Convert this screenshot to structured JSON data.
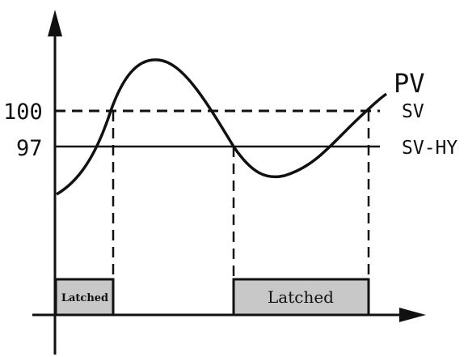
{
  "labels": {
    "value_sv": "100",
    "value_hy": "97",
    "pv": "PV",
    "sv": "SV",
    "sv_hy": "SV-HY",
    "latched_1": "Latched",
    "latched_2": "Latched"
  },
  "colors": {
    "line": "#111111",
    "latch_fill": "#c8c8c8"
  }
}
